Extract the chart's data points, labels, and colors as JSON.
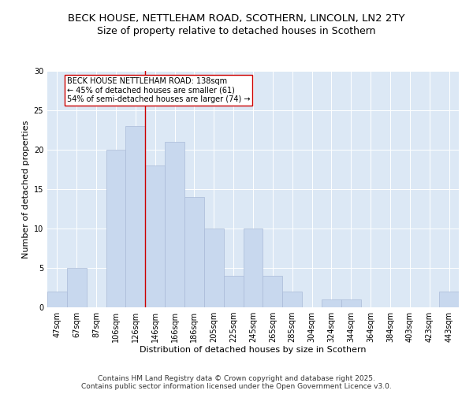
{
  "title1": "BECK HOUSE, NETTLEHAM ROAD, SCOTHERN, LINCOLN, LN2 2TY",
  "title2": "Size of property relative to detached houses in Scothern",
  "xlabel": "Distribution of detached houses by size in Scothern",
  "ylabel": "Number of detached properties",
  "categories": [
    "47sqm",
    "67sqm",
    "87sqm",
    "106sqm",
    "126sqm",
    "146sqm",
    "166sqm",
    "186sqm",
    "205sqm",
    "225sqm",
    "245sqm",
    "265sqm",
    "285sqm",
    "304sqm",
    "324sqm",
    "344sqm",
    "364sqm",
    "384sqm",
    "403sqm",
    "423sqm",
    "443sqm"
  ],
  "values": [
    2,
    5,
    0,
    20,
    23,
    18,
    21,
    14,
    10,
    4,
    10,
    4,
    2,
    0,
    1,
    1,
    0,
    0,
    0,
    0,
    2
  ],
  "bar_color": "#c8d8ee",
  "bar_edge_color": "#aabbd8",
  "vline_x": 4.5,
  "vline_color": "#cc0000",
  "annotation_text": "BECK HOUSE NETTLEHAM ROAD: 138sqm\n← 45% of detached houses are smaller (61)\n54% of semi-detached houses are larger (74) →",
  "annotation_box_color": "white",
  "annotation_box_edge_color": "#cc0000",
  "ylim": [
    0,
    30
  ],
  "yticks": [
    0,
    5,
    10,
    15,
    20,
    25,
    30
  ],
  "background_color": "#dce8f5",
  "footer": "Contains HM Land Registry data © Crown copyright and database right 2025.\nContains public sector information licensed under the Open Government Licence v3.0.",
  "title1_fontsize": 9.5,
  "title2_fontsize": 9,
  "axis_label_fontsize": 8,
  "tick_fontsize": 7,
  "footer_fontsize": 6.5,
  "ann_fontsize": 7
}
